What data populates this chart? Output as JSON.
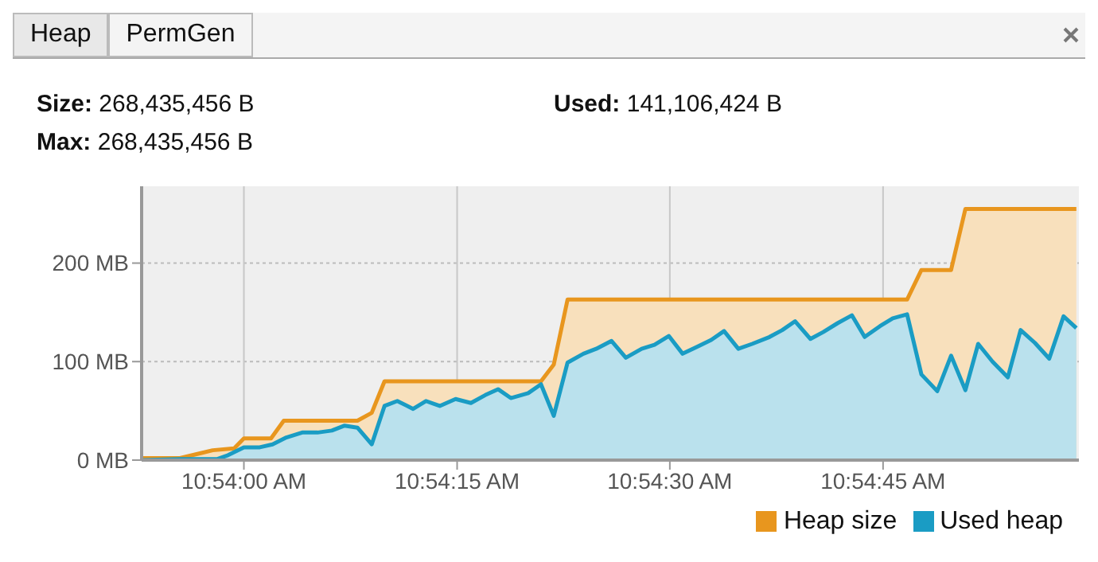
{
  "chart_data": {
    "type": "area",
    "annotations": [
      "Heap",
      "PermGen",
      "Size: 268,435,456 B",
      "Max: 268,435,456 B",
      "Used: 141,106,424 B"
    ],
    "xlim": [
      10.898,
      10.91633
    ],
    "xticks": [
      {
        "value": 10.9,
        "label": "10:54:00 AM"
      },
      {
        "value": 10.90417,
        "label": "10:54:15 AM"
      },
      {
        "value": 10.90833,
        "label": "10:54:30 AM"
      },
      {
        "value": 10.9125,
        "label": "10:54:45 AM"
      }
    ],
    "ylim": [
      0,
      278
    ],
    "yticks": [
      {
        "value": 0,
        "label": "0 MB"
      },
      {
        "value": 100,
        "label": "100 MB"
      },
      {
        "value": 200,
        "label": "200 MB"
      }
    ],
    "grid": true,
    "legend": "bottom right",
    "marker": "none",
    "line_style": "solid",
    "series": [
      {
        "name": "Heap size",
        "color": "#e8961e",
        "x": [
          10.89803,
          10.89875,
          10.89939,
          10.89981,
          10.9,
          10.90053,
          10.90078,
          10.90222,
          10.9025,
          10.90275,
          10.90581,
          10.90606,
          10.90633,
          10.91297,
          10.91325,
          10.91383,
          10.91411,
          10.91628
        ],
        "values": [
          2,
          2,
          10,
          12,
          22,
          22,
          40,
          40,
          48,
          80,
          80,
          97,
          163,
          163,
          193,
          193,
          255,
          255
        ]
      },
      {
        "name": "Used heap",
        "color": "#1a9cc4",
        "x": [
          10.89803,
          10.89875,
          10.89947,
          10.89969,
          10.9,
          10.90031,
          10.90056,
          10.90083,
          10.90114,
          10.90144,
          10.90172,
          10.90197,
          10.90222,
          10.9025,
          10.90275,
          10.903,
          10.90331,
          10.90356,
          10.90383,
          10.90414,
          10.90444,
          10.90472,
          10.90497,
          10.90522,
          10.90556,
          10.90581,
          10.90606,
          10.90633,
          10.90664,
          10.90689,
          10.90719,
          10.90747,
          10.90778,
          10.90803,
          10.90831,
          10.90858,
          10.90886,
          10.90914,
          10.90939,
          10.90967,
          10.90994,
          10.91028,
          10.91053,
          10.91078,
          10.91108,
          10.91133,
          10.91161,
          10.91189,
          10.91214,
          10.91244,
          10.91269,
          10.91297,
          10.91325,
          10.91356,
          10.91383,
          10.91411,
          10.91436,
          10.91464,
          10.91494,
          10.91519,
          10.91547,
          10.91575,
          10.91603,
          10.91628
        ],
        "values": [
          0,
          1,
          1,
          5,
          13,
          13,
          16,
          23,
          28,
          28,
          30,
          35,
          33,
          16,
          55,
          60,
          52,
          60,
          55,
          62,
          58,
          66,
          72,
          63,
          68,
          77,
          45,
          99,
          108,
          113,
          121,
          104,
          113,
          117,
          126,
          108,
          115,
          122,
          131,
          113,
          118,
          125,
          132,
          141,
          123,
          130,
          139,
          147,
          125,
          136,
          144,
          148,
          87,
          70,
          106,
          71,
          118,
          100,
          84,
          132,
          119,
          103,
          146,
          134
        ]
      }
    ]
  }
}
